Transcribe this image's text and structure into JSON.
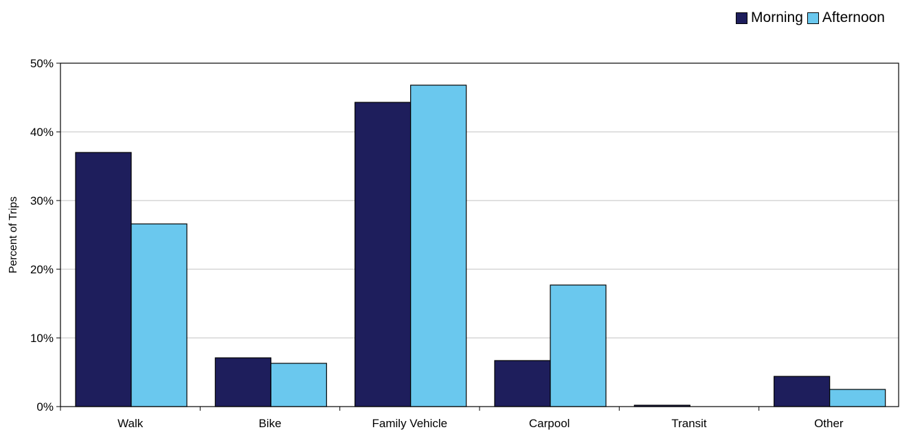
{
  "chart_data": {
    "type": "bar",
    "title": "",
    "xlabel": "",
    "ylabel": "Percent of Trips",
    "ylim": [
      0,
      50
    ],
    "yticks": [
      "0%",
      "10%",
      "20%",
      "30%",
      "40%",
      "50%"
    ],
    "ytick_values": [
      0,
      10,
      20,
      30,
      40,
      50
    ],
    "grid": true,
    "legend_position": "top-right",
    "categories": [
      "Walk",
      "Bike",
      "Family Vehicle",
      "Carpool",
      "Transit",
      "Other"
    ],
    "series": [
      {
        "name": "Morning",
        "color": "#1e1e5c",
        "values": [
          37.0,
          7.1,
          44.3,
          6.7,
          0.2,
          4.4
        ]
      },
      {
        "name": "Afternoon",
        "color": "#6ac8ee",
        "values": [
          26.6,
          6.3,
          46.8,
          17.7,
          0.0,
          2.5
        ]
      }
    ]
  }
}
